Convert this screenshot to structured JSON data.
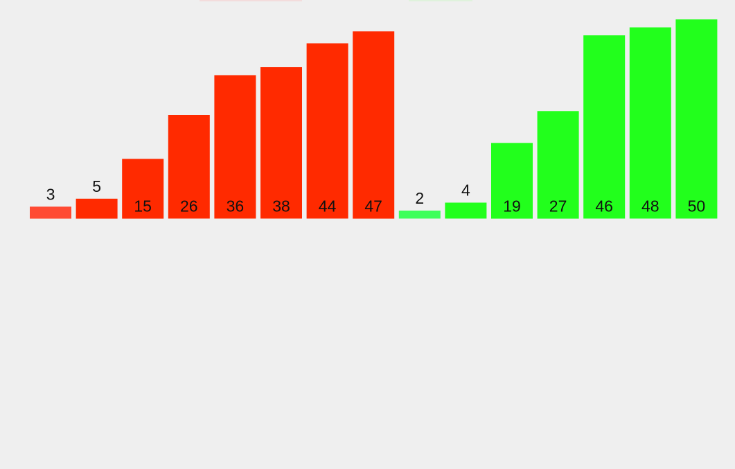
{
  "chart_data": {
    "type": "bar",
    "series": [
      {
        "color": "#ff2a00",
        "values": [
          3,
          5,
          15,
          26,
          36,
          38,
          44,
          47
        ]
      },
      {
        "color": "#22ff1c",
        "values": [
          2,
          4,
          19,
          27,
          46,
          48,
          50
        ]
      }
    ],
    "highlight": {
      "red_first": "#ff4a33",
      "green_first": "#3dff5a"
    },
    "ylim": [
      0,
      50
    ],
    "grid": false,
    "legend": "none",
    "label_color": "#111111"
  }
}
